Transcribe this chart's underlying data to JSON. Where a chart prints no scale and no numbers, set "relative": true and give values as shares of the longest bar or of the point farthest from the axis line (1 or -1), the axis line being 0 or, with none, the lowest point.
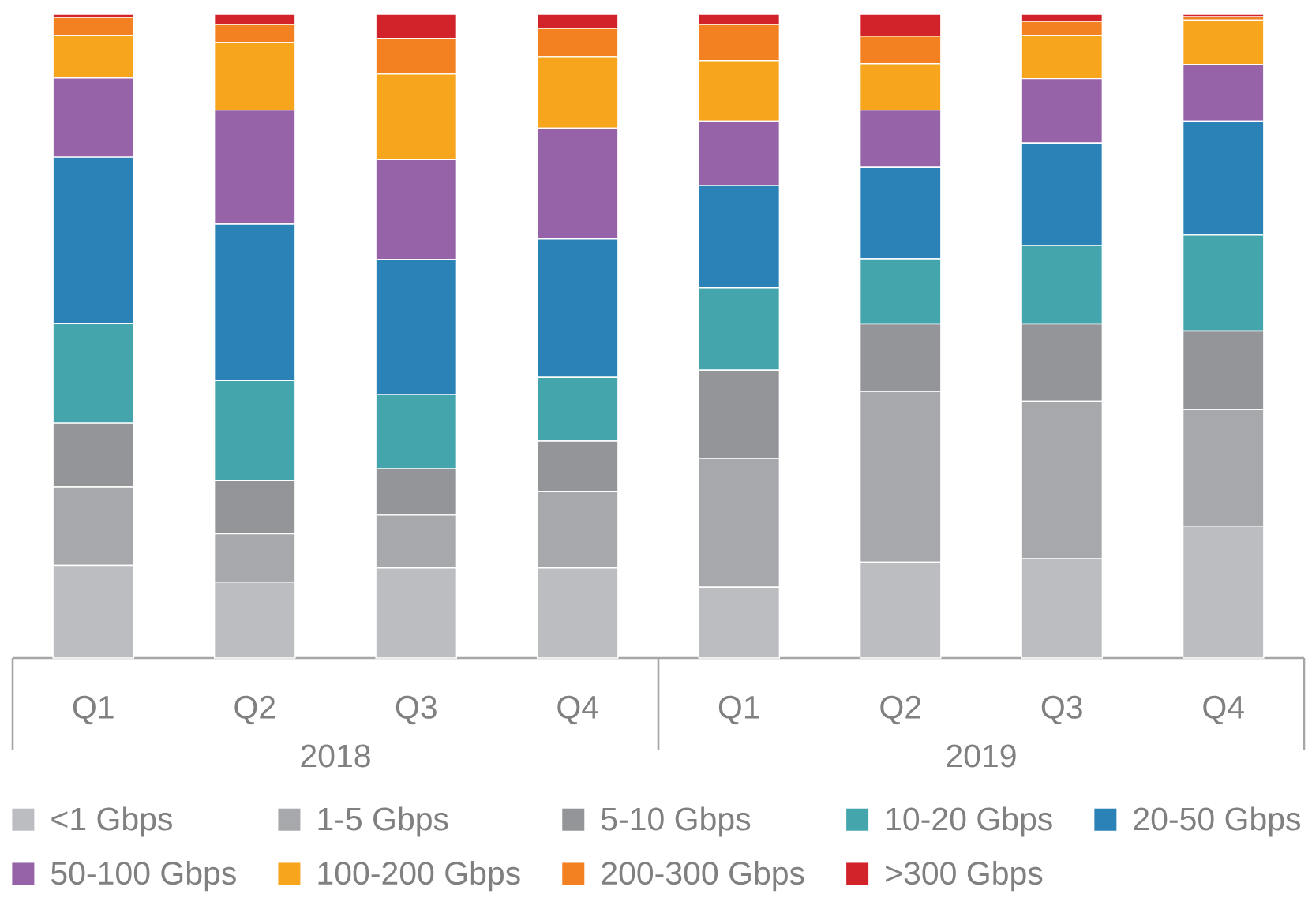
{
  "chart_data": {
    "type": "bar",
    "stacked": true,
    "relative": true,
    "legend": "bottom",
    "categories": [
      "Q1",
      "Q2",
      "Q3",
      "Q4",
      "Q1",
      "Q2",
      "Q3",
      "Q4"
    ],
    "annotations": [
      "2018",
      "2019"
    ],
    "series": [
      {
        "name": "<1 Gbps",
        "color": "#bcbdc1",
        "values": [
          0.144,
          0.118,
          0.14,
          0.14,
          0.11,
          0.149,
          0.154,
          0.205
        ]
      },
      {
        "name": "1-5 Gbps",
        "color": "#a7a8ab",
        "values": [
          0.122,
          0.075,
          0.082,
          0.119,
          0.2,
          0.265,
          0.245,
          0.181
        ]
      },
      {
        "name": "5-10 Gbps",
        "color": "#939598",
        "values": [
          0.099,
          0.083,
          0.072,
          0.078,
          0.137,
          0.105,
          0.12,
          0.122
        ]
      },
      {
        "name": "10-20 Gbps",
        "color": "#45a5ad",
        "values": [
          0.155,
          0.155,
          0.115,
          0.099,
          0.128,
          0.101,
          0.122,
          0.149
        ]
      },
      {
        "name": "20-50 Gbps",
        "color": "#2a82b7",
        "values": [
          0.258,
          0.243,
          0.21,
          0.215,
          0.159,
          0.142,
          0.159,
          0.177
        ]
      },
      {
        "name": "50-100 Gbps",
        "color": "#9663a9",
        "values": [
          0.123,
          0.177,
          0.155,
          0.172,
          0.1,
          0.089,
          0.1,
          0.088
        ]
      },
      {
        "name": "100-200 Gbps",
        "color": "#f7a51d",
        "values": [
          0.066,
          0.105,
          0.133,
          0.111,
          0.094,
          0.072,
          0.067,
          0.069
        ]
      },
      {
        "name": "200-300 Gbps",
        "color": "#f48121",
        "values": [
          0.028,
          0.028,
          0.055,
          0.044,
          0.056,
          0.043,
          0.022,
          0.005
        ]
      },
      {
        "name": ">300 Gbps",
        "color": "#d2232a",
        "values": [
          0.005,
          0.016,
          0.038,
          0.022,
          0.016,
          0.034,
          0.011,
          0.004
        ]
      }
    ]
  }
}
